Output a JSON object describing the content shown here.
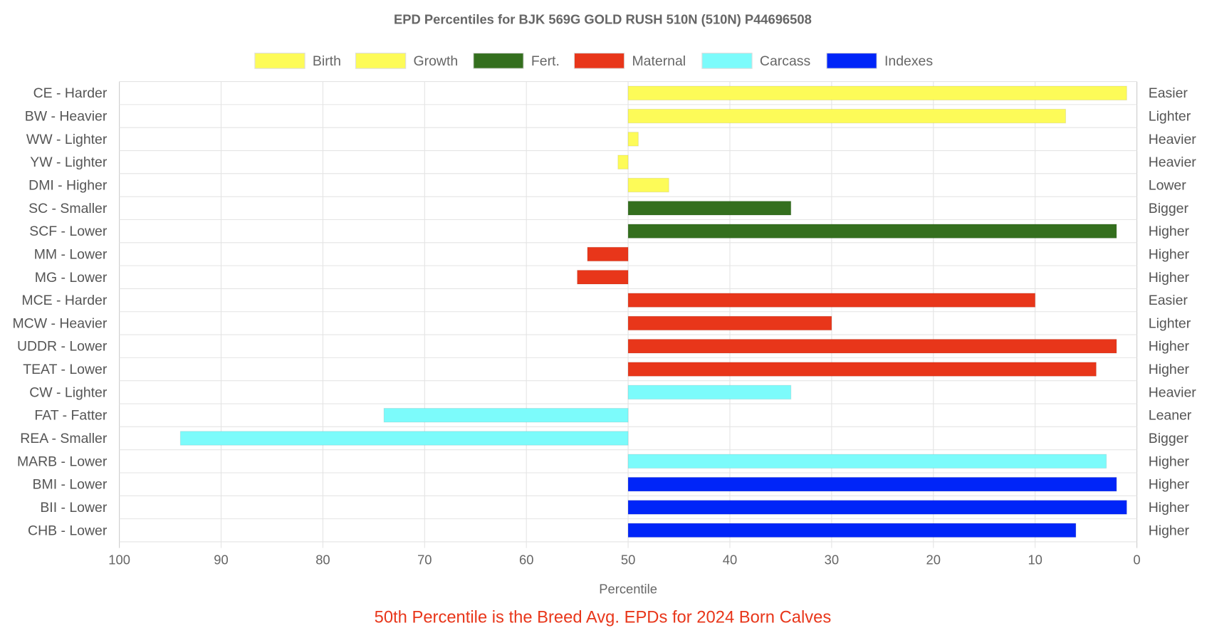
{
  "chart_data": {
    "type": "bar",
    "orientation": "horizontal",
    "title": "EPD Percentiles for BJK 569G GOLD RUSH 510N (510N) P44696508",
    "xlabel": "Percentile",
    "footnote": "50th Percentile is the Breed Avg. EPDs for 2024 Born Calves",
    "xlim": [
      100,
      0
    ],
    "baseline": 50,
    "x_ticks": [
      "100",
      "90",
      "80",
      "70",
      "60",
      "50",
      "40",
      "30",
      "20",
      "10",
      "0"
    ],
    "grid": true,
    "legend_position": "top",
    "legend": [
      {
        "name": "Birth",
        "color": "#FDFB58"
      },
      {
        "name": "Growth",
        "color": "#FDFB58"
      },
      {
        "name": "Fert.",
        "color": "#346F1E"
      },
      {
        "name": "Maternal",
        "color": "#E8361A"
      },
      {
        "name": "Carcass",
        "color": "#7CFBFB"
      },
      {
        "name": "Indexes",
        "color": "#0025F8"
      }
    ],
    "rows": [
      {
        "left": "CE - Harder",
        "right": "Easier",
        "value": 1,
        "group": 0
      },
      {
        "left": "BW - Heavier",
        "right": "Lighter",
        "value": 7,
        "group": 0
      },
      {
        "left": "WW - Lighter",
        "right": "Heavier",
        "value": 49,
        "group": 1
      },
      {
        "left": "YW - Lighter",
        "right": "Heavier",
        "value": 51,
        "group": 1
      },
      {
        "left": "DMI - Higher",
        "right": "Lower",
        "value": 46,
        "group": 1
      },
      {
        "left": "SC - Smaller",
        "right": "Bigger",
        "value": 34,
        "group": 2
      },
      {
        "left": "SCF - Lower",
        "right": "Higher",
        "value": 2,
        "group": 2
      },
      {
        "left": "MM - Lower",
        "right": "Higher",
        "value": 54,
        "group": 3
      },
      {
        "left": "MG - Lower",
        "right": "Higher",
        "value": 55,
        "group": 3
      },
      {
        "left": "MCE - Harder",
        "right": "Easier",
        "value": 10,
        "group": 3
      },
      {
        "left": "MCW - Heavier",
        "right": "Lighter",
        "value": 30,
        "group": 3
      },
      {
        "left": "UDDR - Lower",
        "right": "Higher",
        "value": 2,
        "group": 3
      },
      {
        "left": "TEAT - Lower",
        "right": "Higher",
        "value": 4,
        "group": 3
      },
      {
        "left": "CW - Lighter",
        "right": "Heavier",
        "value": 34,
        "group": 4
      },
      {
        "left": "FAT - Fatter",
        "right": "Leaner",
        "value": 74,
        "group": 4
      },
      {
        "left": "REA - Smaller",
        "right": "Bigger",
        "value": 94,
        "group": 4
      },
      {
        "left": "MARB - Lower",
        "right": "Higher",
        "value": 3,
        "group": 4
      },
      {
        "left": "BMI - Lower",
        "right": "Higher",
        "value": 2,
        "group": 5
      },
      {
        "left": "BII - Lower",
        "right": "Higher",
        "value": 1,
        "group": 5
      },
      {
        "left": "CHB - Lower",
        "right": "Higher",
        "value": 6,
        "group": 5
      }
    ]
  }
}
